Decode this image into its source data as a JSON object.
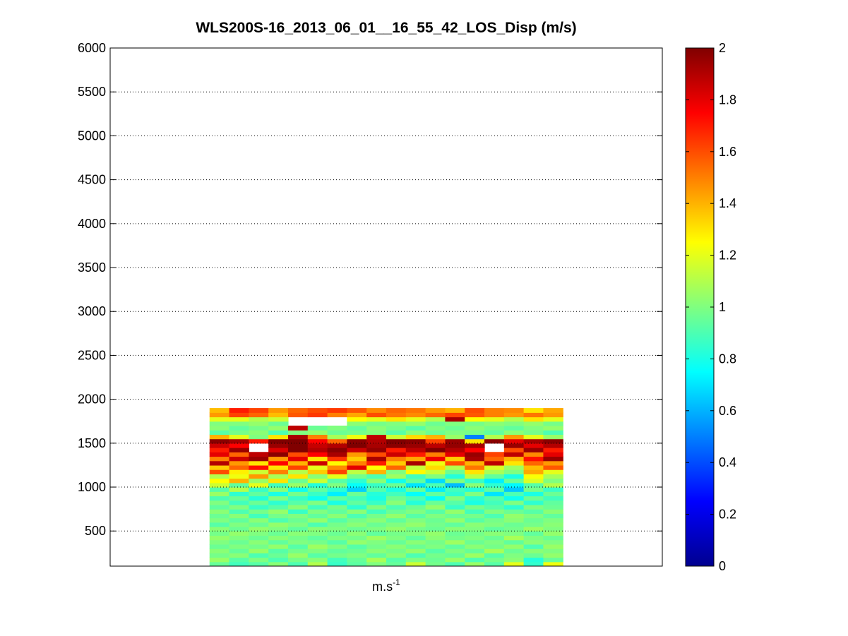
{
  "chart_data": {
    "type": "heatmap",
    "title": "WLS200S-16_2013_06_01__16_55_42_LOS_Disp (m/s)",
    "xlabel": {
      "base": "m.s",
      "superscript": "-1"
    },
    "ylabel": "",
    "ylim": [
      100,
      6000
    ],
    "y_ticks": [
      500,
      1000,
      1500,
      2000,
      2500,
      3000,
      3500,
      4000,
      4500,
      5000,
      5500,
      6000
    ],
    "x_ticks": [],
    "grid": "horizontal-dotted",
    "colormap": "jet",
    "colorbar": {
      "range": [
        0,
        2
      ],
      "ticks": [
        0,
        0.2,
        0.4,
        0.6,
        0.8,
        1,
        1.2,
        1.4,
        1.6,
        1.8,
        2
      ],
      "tick_labels": [
        "0",
        "0.2",
        "0.4",
        "0.6",
        "0.8",
        "1",
        "1.2",
        "1.4",
        "1.6",
        "1.8",
        "2"
      ]
    },
    "heatmap": {
      "x_extent": [
        0.18,
        0.82
      ],
      "n_columns": 18,
      "altitude_start": 100,
      "altitude_step": 50,
      "rows": [
        [
          0.95,
          0.88,
          0.92,
          1.02,
          0.9,
          1.1,
          0.86,
          0.93,
          1.0,
          0.95,
          1.15,
          0.98,
          0.9,
          1.05,
          0.92,
          1.2,
          0.85,
          1.22
        ],
        [
          1.05,
          0.92,
          1.0,
          0.9,
          0.98,
          1.02,
          0.88,
          0.95,
          1.08,
          0.92,
          1.0,
          0.96,
          1.05,
          0.9,
          0.98,
          1.02,
          0.82,
          0.95
        ],
        [
          0.98,
          1.02,
          0.9,
          0.96,
          1.05,
          0.92,
          0.98,
          1.0,
          0.94,
          1.02,
          0.9,
          0.98,
          0.95,
          1.06,
          0.92,
          1.0,
          0.96,
          1.04
        ],
        [
          1.02,
          0.95,
          1.05,
          0.92,
          0.98,
          1.0,
          0.94,
          0.96,
          1.02,
          0.98,
          1.04,
          0.92,
          1.0,
          0.95,
          1.08,
          0.96,
          1.02,
          1.0
        ],
        [
          0.96,
          1.0,
          0.98,
          1.04,
          0.92,
          1.06,
          1.0,
          0.92,
          0.98,
          1.02,
          0.96,
          1.0,
          0.94,
          1.02,
          0.98,
          1.04,
          0.9,
          1.05
        ],
        [
          1.0,
          0.96,
          1.02,
          0.94,
          1.0,
          0.98,
          0.92,
          1.04,
          1.0,
          0.95,
          1.02,
          0.98,
          1.06,
          0.96,
          1.0,
          0.94,
          1.02,
          1.0
        ],
        [
          1.04,
          1.0,
          0.96,
          1.02,
          0.98,
          0.94,
          1.0,
          0.98,
          1.06,
          1.0,
          0.94,
          1.02,
          0.98,
          1.0,
          0.96,
          1.08,
          1.0,
          0.96
        ],
        [
          0.98,
          1.04,
          1.0,
          0.96,
          1.02,
          1.0,
          0.96,
          1.02,
          0.94,
          0.98,
          1.0,
          1.04,
          0.96,
          0.98,
          1.02,
          1.0,
          0.94,
          1.04
        ],
        [
          1.02,
          0.96,
          1.04,
          1.0,
          0.94,
          1.02,
          1.0,
          0.96,
          1.0,
          1.04,
          0.98,
          0.96,
          1.02,
          1.0,
          0.94,
          0.98,
          1.06,
          1.0
        ],
        [
          0.92,
          1.0,
          0.96,
          1.04,
          1.0,
          0.9,
          0.98,
          1.02,
          0.96,
          1.0,
          1.04,
          0.98,
          0.94,
          1.02,
          1.0,
          0.96,
          0.98,
          1.02
        ],
        [
          1.0,
          0.94,
          1.02,
          0.9,
          0.96,
          1.04,
          0.92,
          0.98,
          1.02,
          0.94,
          1.0,
          0.96,
          1.04,
          0.92,
          0.98,
          1.02,
          0.96,
          1.0
        ],
        [
          0.96,
          1.02,
          0.88,
          0.98,
          1.0,
          0.94,
          1.02,
          0.9,
          0.98,
          1.04,
          0.92,
          1.0,
          0.96,
          0.98,
          0.9,
          1.04,
          1.0,
          0.94
        ],
        [
          1.02,
          0.9,
          0.98,
          1.04,
          0.86,
          1.0,
          0.94,
          1.02,
          0.88,
          0.96,
          1.0,
          0.92,
          1.04,
          0.88,
          1.0,
          0.96,
          0.92,
          1.02
        ],
        [
          0.94,
          1.0,
          0.86,
          0.92,
          1.02,
          0.88,
          0.98,
          0.84,
          1.0,
          0.9,
          0.96,
          1.04,
          0.86,
          0.98,
          0.92,
          0.84,
          1.0,
          0.96
        ],
        [
          1.0,
          0.88,
          0.96,
          0.84,
          0.92,
          1.0,
          0.8,
          0.94,
          0.86,
          1.02,
          0.82,
          0.96,
          0.92,
          0.8,
          0.88,
          1.0,
          0.84,
          0.94
        ],
        [
          0.9,
          0.96,
          0.82,
          1.0,
          0.86,
          0.78,
          0.94,
          0.88,
          0.8,
          0.96,
          0.9,
          0.76,
          1.0,
          0.84,
          0.92,
          0.78,
          0.96,
          0.88
        ],
        [
          1.05,
          0.84,
          0.94,
          0.8,
          0.98,
          0.86,
          0.72,
          0.96,
          0.82,
          0.88,
          0.76,
          0.94,
          0.84,
          1.0,
          0.7,
          0.9,
          0.8,
          0.96
        ],
        [
          0.92,
          1.1,
          0.86,
          1.02,
          0.78,
          0.94,
          0.84,
          0.66,
          0.92,
          0.8,
          0.96,
          0.72,
          0.88,
          0.82,
          0.94,
          0.64,
          0.98,
          0.86
        ],
        [
          1.15,
          0.94,
          1.2,
          0.88,
          1.05,
          0.82,
          1.0,
          0.76,
          0.86,
          0.96,
          0.7,
          0.9,
          0.62,
          1.02,
          0.84,
          0.74,
          0.92,
          1.1
        ],
        [
          1.25,
          1.4,
          1.05,
          1.3,
          0.96,
          1.15,
          0.92,
          0.84,
          1.02,
          0.78,
          0.94,
          0.68,
          1.0,
          0.86,
          0.72,
          0.96,
          1.18,
          1.0
        ],
        [
          1.1,
          1.22,
          1.45,
          1.08,
          1.3,
          1.02,
          1.2,
          0.98,
          0.9,
          1.06,
          0.88,
          1.0,
          0.82,
          1.12,
          0.94,
          0.8,
          1.24,
          1.08
        ],
        [
          1.6,
          1.28,
          1.15,
          1.5,
          1.1,
          1.35,
          1.62,
          1.12,
          1.4,
          1.0,
          1.26,
          1.14,
          0.96,
          1.3,
          1.08,
          1.0,
          1.42,
          1.2
        ],
        [
          1.35,
          1.55,
          1.72,
          1.3,
          1.62,
          1.2,
          1.48,
          1.8,
          1.25,
          1.55,
          1.14,
          1.32,
          1.1,
          1.52,
          1.18,
          1.06,
          1.38,
          1.58
        ],
        [
          1.9,
          1.45,
          1.3,
          1.75,
          1.4,
          1.85,
          1.26,
          1.5,
          1.7,
          1.35,
          1.92,
          1.22,
          1.6,
          1.4,
          1.88,
          1.3,
          1.55,
          1.45
        ],
        [
          1.5,
          1.85,
          1.95,
          1.45,
          1.8,
          1.3,
          1.65,
          1.35,
          1.92,
          1.5,
          1.42,
          1.78,
          1.35,
          1.92,
          1.55,
          1.4,
          1.72,
          1.95
        ],
        [
          1.8,
          1.55,
          1.88,
          1.98,
          1.6,
          1.75,
          1.92,
          1.45,
          1.6,
          1.85,
          1.7,
          1.5,
          1.8,
          1.95,
          1.62,
          1.88,
          1.48,
          1.8
        ],
        [
          1.7,
          1.95,
          null,
          1.82,
          2.0,
          1.9,
          1.98,
          1.85,
          1.96,
          1.7,
          1.88,
          2.0,
          1.9,
          1.75,
          null,
          1.6,
          1.95,
          1.7
        ],
        [
          1.85,
          1.75,
          null,
          1.95,
          2.0,
          1.86,
          1.9,
          2.0,
          1.92,
          1.98,
          1.95,
          1.88,
          1.96,
          1.92,
          null,
          1.95,
          1.8,
          1.9
        ],
        [
          1.98,
          1.92,
          1.7,
          2.0,
          2.0,
          1.75,
          1.55,
          1.98,
          1.9,
          2.0,
          1.98,
          1.62,
          1.95,
          1.3,
          1.98,
          1.8,
          1.92,
          1.98
        ],
        [
          1.4,
          1.2,
          1.0,
          1.3,
          1.92,
          1.5,
          1.08,
          1.22,
          1.88,
          1.15,
          1.32,
          1.4,
          1.05,
          0.5,
          1.1,
          1.45,
          1.2,
          1.05
        ],
        [
          0.92,
          0.98,
          1.02,
          0.9,
          1.0,
          1.04,
          0.96,
          0.98,
          1.0,
          0.92,
          1.02,
          0.96,
          1.0,
          0.98,
          0.94,
          1.02,
          0.98,
          0.9
        ],
        [
          1.02,
          0.94,
          0.98,
          1.04,
          1.88,
          0.96,
          1.0,
          0.94,
          1.02,
          0.98,
          0.92,
          1.0,
          0.96,
          1.02,
          0.98,
          0.94,
          1.0,
          1.04
        ],
        [
          1.0,
          1.0,
          1.04,
          0.96,
          null,
          null,
          null,
          1.02,
          0.98,
          1.0,
          1.04,
          0.96,
          1.0,
          0.98,
          1.02,
          1.0,
          1.04,
          0.98
        ],
        [
          1.2,
          1.2,
          1.1,
          1.15,
          null,
          null,
          null,
          1.25,
          1.2,
          1.3,
          1.2,
          1.1,
          1.92,
          1.25,
          1.2,
          1.1,
          1.3,
          1.2
        ],
        [
          1.45,
          1.62,
          1.55,
          1.38,
          1.58,
          1.64,
          1.5,
          1.42,
          1.6,
          1.52,
          1.48,
          1.55,
          1.62,
          1.58,
          1.5,
          1.45,
          1.52,
          1.45
        ],
        [
          1.38,
          1.7,
          1.62,
          1.45,
          1.55,
          1.6,
          1.64,
          1.58,
          1.48,
          1.55,
          1.52,
          1.45,
          1.4,
          1.6,
          1.5,
          1.48,
          1.3,
          1.42
        ]
      ]
    }
  }
}
